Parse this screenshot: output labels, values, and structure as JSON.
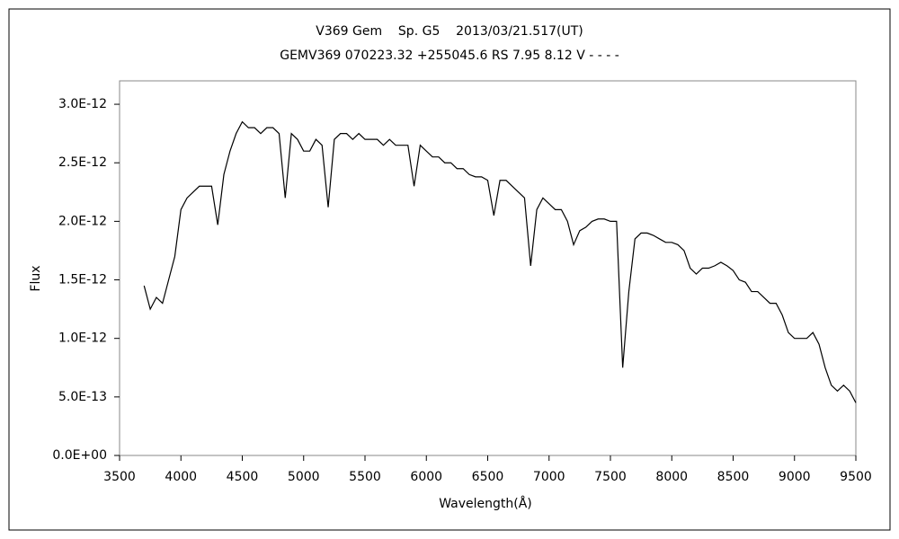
{
  "chart_data": {
    "type": "line",
    "title": "V369 Gem    Sp. G5    2013/03/21.517(UT)",
    "subtitle": "GEMV369 070223.32 +255045.6 RS 7.95 8.12 V - - - -",
    "x_label": "Wavelength(Å)",
    "y_label": "Flux",
    "xlim": [
      3500,
      9500
    ],
    "xticks": [
      3500,
      4000,
      4500,
      5000,
      5500,
      6000,
      6500,
      7000,
      7500,
      8000,
      8500,
      9000,
      9500
    ],
    "ylim": [
      0,
      3.2e-12
    ],
    "yticks": [
      {
        "value": 0,
        "label": "0.0E+00"
      },
      {
        "value": 5e-13,
        "label": "5.0E-13"
      },
      {
        "value": 1e-12,
        "label": "1.0E-12"
      },
      {
        "value": 1.5e-12,
        "label": "1.5E-12"
      },
      {
        "value": 2e-12,
        "label": "2.0E-12"
      },
      {
        "value": 2.5e-12,
        "label": "2.5E-12"
      },
      {
        "value": 3e-12,
        "label": "3.0E-12"
      }
    ],
    "grid": false,
    "series": [
      {
        "color": "#000000",
        "x": [
          3700,
          3750,
          3800,
          3850,
          3900,
          3950,
          4000,
          4050,
          4100,
          4150,
          4200,
          4250,
          4300,
          4350,
          4400,
          4450,
          4500,
          4550,
          4600,
          4650,
          4700,
          4750,
          4800,
          4850,
          4900,
          4950,
          5000,
          5050,
          5100,
          5150,
          5200,
          5250,
          5300,
          5350,
          5400,
          5450,
          5500,
          5550,
          5600,
          5650,
          5700,
          5750,
          5800,
          5850,
          5900,
          5950,
          6000,
          6050,
          6100,
          6150,
          6200,
          6250,
          6300,
          6350,
          6400,
          6450,
          6500,
          6550,
          6600,
          6650,
          6700,
          6750,
          6800,
          6850,
          6900,
          6950,
          7000,
          7050,
          7100,
          7150,
          7200,
          7250,
          7300,
          7350,
          7400,
          7450,
          7500,
          7550,
          7600,
          7650,
          7700,
          7750,
          7800,
          7850,
          7900,
          7950,
          8000,
          8050,
          8100,
          8150,
          8200,
          8250,
          8300,
          8350,
          8400,
          8450,
          8500,
          8550,
          8600,
          8650,
          8700,
          8750,
          8800,
          8850,
          8900,
          8950,
          9000,
          9050,
          9100,
          9150,
          9200,
          9250,
          9300,
          9350,
          9400,
          9450,
          9500
        ],
        "values": [
          1.45e-12,
          1.25e-12,
          1.35e-12,
          1.3e-12,
          1.5e-12,
          1.7e-12,
          2.1e-12,
          2.2e-12,
          2.25e-12,
          2.3e-12,
          2.3e-12,
          2.3e-12,
          1.97e-12,
          2.4e-12,
          2.6e-12,
          2.75e-12,
          2.85e-12,
          2.8e-12,
          2.8e-12,
          2.75e-12,
          2.8e-12,
          2.8e-12,
          2.75e-12,
          2.2e-12,
          2.75e-12,
          2.7e-12,
          2.6e-12,
          2.6e-12,
          2.7e-12,
          2.65e-12,
          2.12e-12,
          2.7e-12,
          2.75e-12,
          2.75e-12,
          2.7e-12,
          2.75e-12,
          2.7e-12,
          2.7e-12,
          2.7e-12,
          2.65e-12,
          2.7e-12,
          2.65e-12,
          2.65e-12,
          2.65e-12,
          2.3e-12,
          2.65e-12,
          2.6e-12,
          2.55e-12,
          2.55e-12,
          2.5e-12,
          2.5e-12,
          2.45e-12,
          2.45e-12,
          2.4e-12,
          2.38e-12,
          2.38e-12,
          2.35e-12,
          2.05e-12,
          2.35e-12,
          2.35e-12,
          2.3e-12,
          2.25e-12,
          2.2e-12,
          1.62e-12,
          2.1e-12,
          2.2e-12,
          2.15e-12,
          2.1e-12,
          2.1e-12,
          2e-12,
          1.8e-12,
          1.92e-12,
          1.95e-12,
          2e-12,
          2.02e-12,
          2.02e-12,
          2e-12,
          2e-12,
          7.5e-13,
          1.4e-12,
          1.85e-12,
          1.9e-12,
          1.9e-12,
          1.88e-12,
          1.85e-12,
          1.82e-12,
          1.82e-12,
          1.8e-12,
          1.75e-12,
          1.6e-12,
          1.55e-12,
          1.6e-12,
          1.6e-12,
          1.62e-12,
          1.65e-12,
          1.62e-12,
          1.58e-12,
          1.5e-12,
          1.48e-12,
          1.4e-12,
          1.4e-12,
          1.35e-12,
          1.3e-12,
          1.3e-12,
          1.2e-12,
          1.05e-12,
          1e-12,
          1e-12,
          1e-12,
          1.05e-12,
          9.5e-13,
          7.5e-13,
          6e-13,
          5.5e-13,
          6e-13,
          5.5e-13,
          4.5e-13
        ]
      }
    ]
  }
}
